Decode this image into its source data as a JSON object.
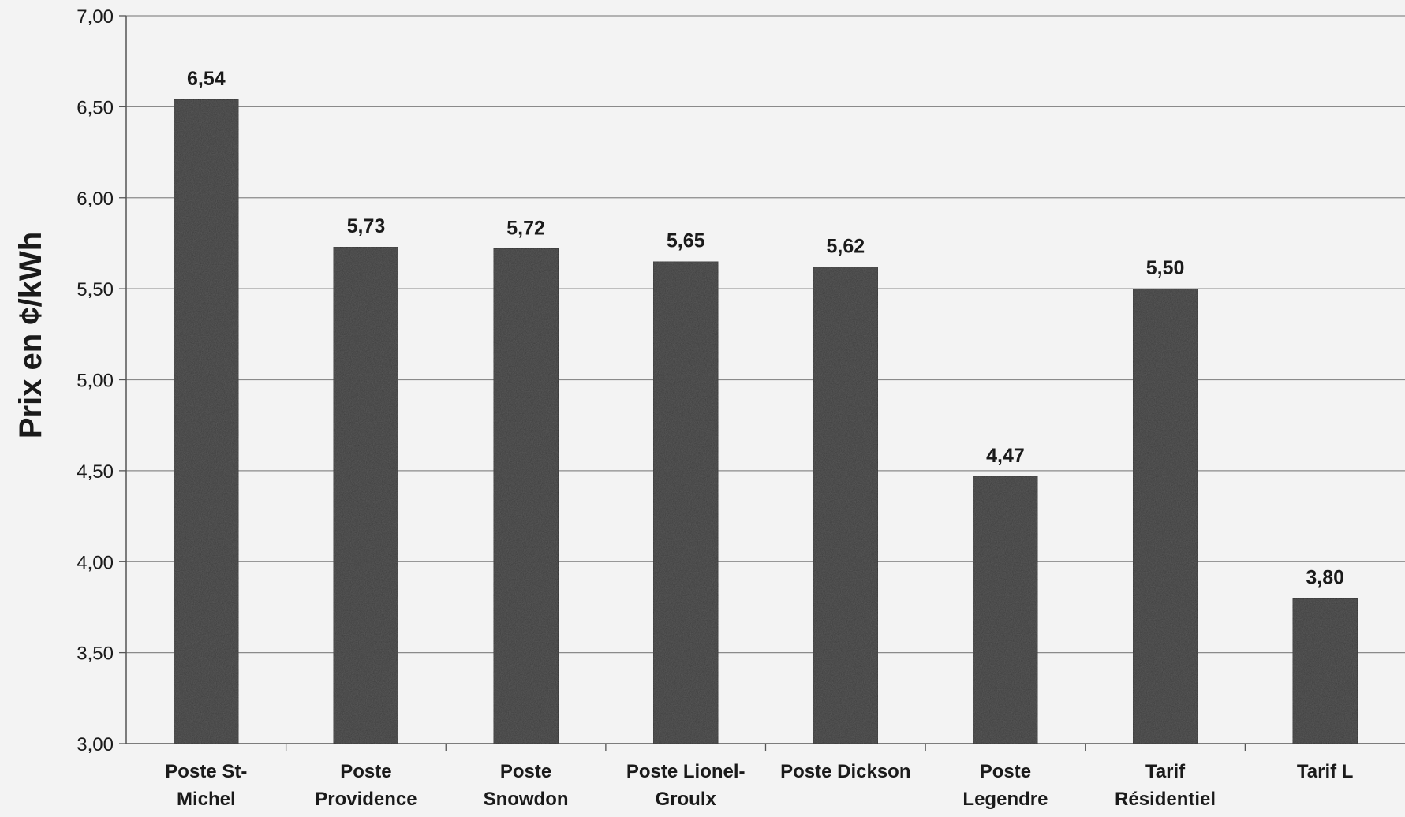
{
  "chart_data": {
    "type": "bar",
    "title": "",
    "xlabel": "",
    "ylabel": "Prix en ¢/kWh",
    "ylim": [
      3.0,
      7.0
    ],
    "yticks": [
      "3,00",
      "3,50",
      "4,00",
      "4,50",
      "5,00",
      "5,50",
      "6,00",
      "6,50",
      "7,00"
    ],
    "grid": true,
    "legend": "none",
    "categories": [
      [
        "Poste St-",
        "Michel"
      ],
      [
        "Poste",
        "Providence"
      ],
      [
        "Poste",
        "Snowdon"
      ],
      [
        "Poste Lionel-",
        "Groulx"
      ],
      [
        "Poste Dickson"
      ],
      [
        "Poste",
        "Legendre"
      ],
      [
        "Tarif",
        "Résidentiel"
      ],
      [
        "Tarif L"
      ]
    ],
    "values": [
      6.54,
      5.73,
      5.72,
      5.65,
      5.62,
      4.47,
      5.5,
      3.8
    ],
    "value_labels": [
      "6,54",
      "5,73",
      "5,72",
      "5,65",
      "5,62",
      "4,47",
      "5,50",
      "3,80"
    ],
    "colors": {
      "bar": "#3a3a3a",
      "grid": "#8a8a8a",
      "background": "#f3f3f3"
    }
  }
}
